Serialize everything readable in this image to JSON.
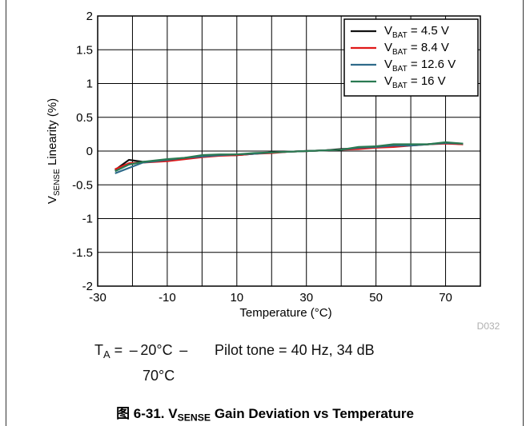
{
  "chart_data": {
    "type": "line",
    "ylabel_main": "V",
    "ylabel_sub": "SENSE",
    "ylabel_rest": " Linearity (%)",
    "xlabel": "Temperature (°C)",
    "xlim": [
      -30,
      80
    ],
    "ylim": [
      -2,
      2
    ],
    "xticks": [
      -30,
      -10,
      10,
      30,
      50,
      70
    ],
    "yticks": [
      2,
      1.5,
      1,
      0.5,
      0,
      -0.5,
      -1,
      -1.5,
      -2
    ],
    "ytick_labels": [
      "2",
      "1.5",
      "1",
      "0.5",
      "0",
      "-0.5",
      "-1",
      "-1.5",
      "-2"
    ],
    "grid": true,
    "legend_position": "top-right",
    "watermark": "D032",
    "series": [
      {
        "name_main": "V",
        "name_sub": "BAT",
        "name_rest": " = 4.5 V",
        "color": "#111111",
        "x": [
          -25,
          -21,
          -17,
          -10,
          -5,
          0,
          5,
          10,
          15,
          20,
          25,
          30,
          35,
          40,
          45,
          50,
          55,
          60,
          65,
          70,
          75
        ],
        "y": [
          -0.28,
          -0.13,
          -0.16,
          -0.14,
          -0.11,
          -0.07,
          -0.06,
          -0.06,
          -0.04,
          -0.02,
          -0.01,
          0.0,
          0.01,
          0.03,
          0.04,
          0.07,
          0.08,
          0.09,
          0.1,
          0.12,
          0.1
        ]
      },
      {
        "name_main": "V",
        "name_sub": "BAT",
        "name_rest": " = 8.4 V",
        "color": "#e01818",
        "x": [
          -25,
          -21,
          -17,
          -10,
          -5,
          0,
          5,
          10,
          15,
          20,
          25,
          30,
          35,
          40,
          45,
          50,
          55,
          60,
          65,
          70,
          75
        ],
        "y": [
          -0.27,
          -0.18,
          -0.17,
          -0.15,
          -0.12,
          -0.09,
          -0.07,
          -0.06,
          -0.04,
          -0.03,
          -0.01,
          0.0,
          0.01,
          0.02,
          0.03,
          0.05,
          0.06,
          0.08,
          0.1,
          0.11,
          0.1
        ]
      },
      {
        "name_main": "V",
        "name_sub": "BAT",
        "name_rest": " = 12.6 V",
        "color": "#2e6a8a",
        "x": [
          -25,
          -21,
          -17,
          -10,
          -5,
          0,
          5,
          10,
          15,
          20,
          25,
          30,
          35,
          40,
          45,
          50,
          55,
          60,
          65,
          70,
          75
        ],
        "y": [
          -0.33,
          -0.25,
          -0.17,
          -0.13,
          -0.1,
          -0.08,
          -0.06,
          -0.05,
          -0.04,
          -0.02,
          -0.01,
          0.0,
          0.01,
          0.02,
          0.05,
          0.06,
          0.08,
          0.08,
          0.1,
          0.12,
          0.11
        ]
      },
      {
        "name_main": "V",
        "name_sub": "BAT",
        "name_rest": " = 16 V",
        "color": "#2a7a52",
        "x": [
          -25,
          -21,
          -17,
          -10,
          -5,
          0,
          5,
          10,
          15,
          20,
          25,
          30,
          35,
          40,
          45,
          50,
          55,
          60,
          65,
          70,
          75
        ],
        "y": [
          -0.3,
          -0.2,
          -0.16,
          -0.12,
          -0.1,
          -0.06,
          -0.05,
          -0.05,
          -0.03,
          -0.02,
          -0.01,
          0.0,
          0.01,
          0.02,
          0.06,
          0.07,
          0.1,
          0.1,
          0.1,
          0.13,
          0.11
        ]
      }
    ]
  },
  "conditions": {
    "ta_main": "T",
    "ta_sub": "A",
    "ta_range": " =  – 20°C  –",
    "ta_upper": "70°C",
    "pilot": "Pilot tone = 40 Hz, 34 dB"
  },
  "caption": {
    "prefix": "图 6-31. V",
    "sub": "SENSE",
    "rest": " Gain Deviation vs Temperature"
  }
}
